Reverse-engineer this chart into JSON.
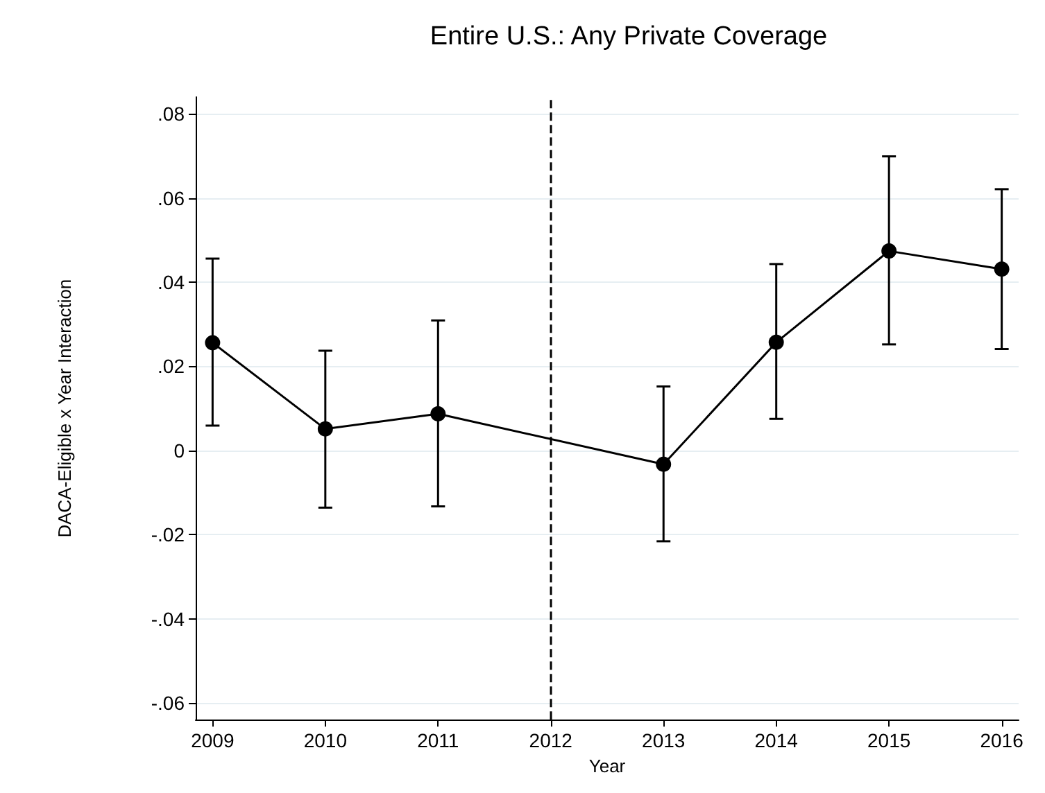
{
  "chart_data": {
    "type": "line",
    "title": "Entire U.S.: Any Private Coverage",
    "xlabel": "Year",
    "ylabel": "DACA-Eligible x Year Interaction",
    "x": [
      2009,
      2010,
      2011,
      2013,
      2014,
      2015,
      2016
    ],
    "series": [
      {
        "color": "#000000",
        "values": [
          0.0256,
          0.0051,
          0.0087,
          -0.0033,
          0.0257,
          0.0474,
          0.0431
        ],
        "errors": [
          [
            0.0059,
            0.0456
          ],
          [
            -0.0136,
            0.0237
          ],
          [
            -0.0133,
            0.0309
          ],
          [
            -0.0216,
            0.0152
          ],
          [
            0.0075,
            0.0443
          ],
          [
            0.0252,
            0.0699
          ],
          [
            0.0241,
            0.0621
          ]
        ]
      }
    ],
    "xlim": [
      2008.85,
      2016.15
    ],
    "xticks": [
      2009,
      2010,
      2011,
      2012,
      2013,
      2014,
      2015,
      2016
    ],
    "ylim": [
      -0.064,
      0.084
    ],
    "yticks": [
      {
        "value": -0.06,
        "label": "-.06"
      },
      {
        "value": -0.04,
        "label": "-.04"
      },
      {
        "value": -0.02,
        "label": "-.02"
      },
      0,
      {
        "value": 0.02,
        "label": ".02"
      },
      {
        "value": 0.04,
        "label": ".04"
      },
      {
        "value": 0.06,
        "label": ".06"
      },
      {
        "value": 0.08,
        "label": ".08"
      }
    ],
    "grid": "y",
    "marker": "circle",
    "line_style": "solid",
    "ref_lines": [
      {
        "axis": "x",
        "value": 2012,
        "line_style": "dashed",
        "color": "#000000"
      }
    ]
  }
}
